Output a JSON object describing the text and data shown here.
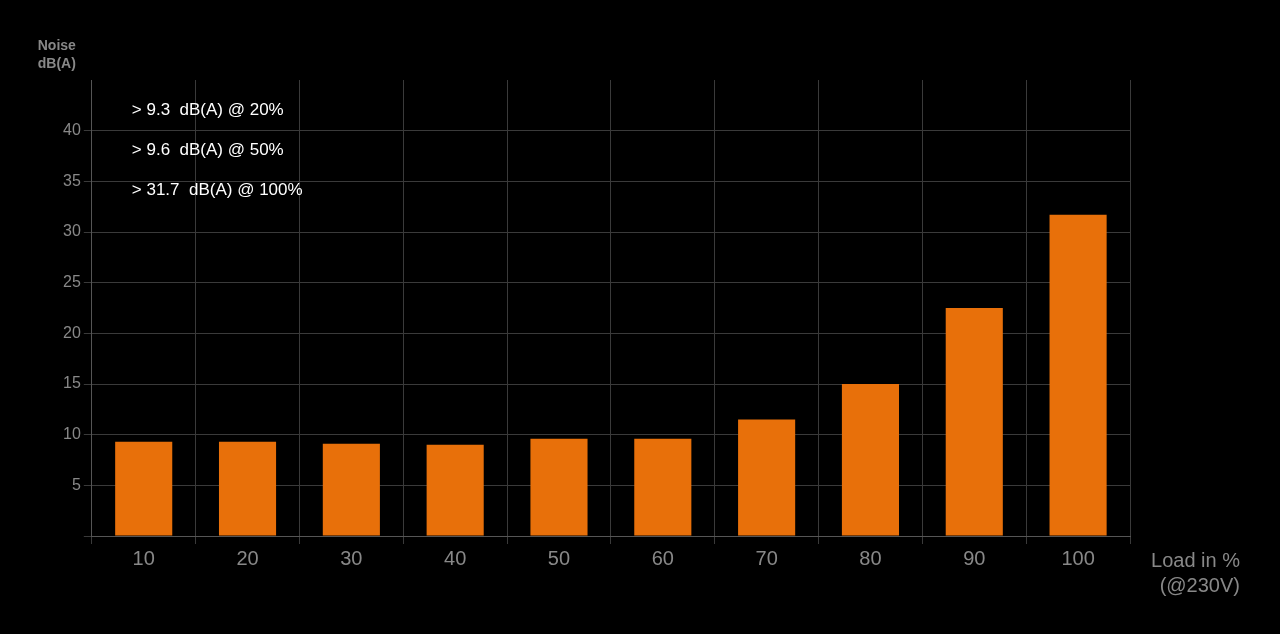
{
  "chart_data": {
    "type": "bar",
    "ylabel": "Noise dB(A)",
    "xlabel": "Load in % (@230V)",
    "categories": [
      "10",
      "20",
      "30",
      "40",
      "50",
      "60",
      "70",
      "80",
      "90",
      "100"
    ],
    "series": [
      {
        "color": "#e8700a",
        "values": [
          9.3,
          9.3,
          9.1,
          9.0,
          9.6,
          9.6,
          11.5,
          15,
          22.5,
          31.7
        ]
      }
    ],
    "ylim": [
      0,
      45
    ],
    "yticks": [
      {
        "value": 0,
        "label": null
      },
      5,
      10,
      15,
      20,
      25,
      30,
      35,
      40
    ],
    "grid": true,
    "legend": false,
    "annotations": [
      "> 9.3  dB(A) @ 20%",
      "> 9.6  dB(A) @ 50%",
      "> 31.7  dB(A) @ 100%"
    ]
  }
}
